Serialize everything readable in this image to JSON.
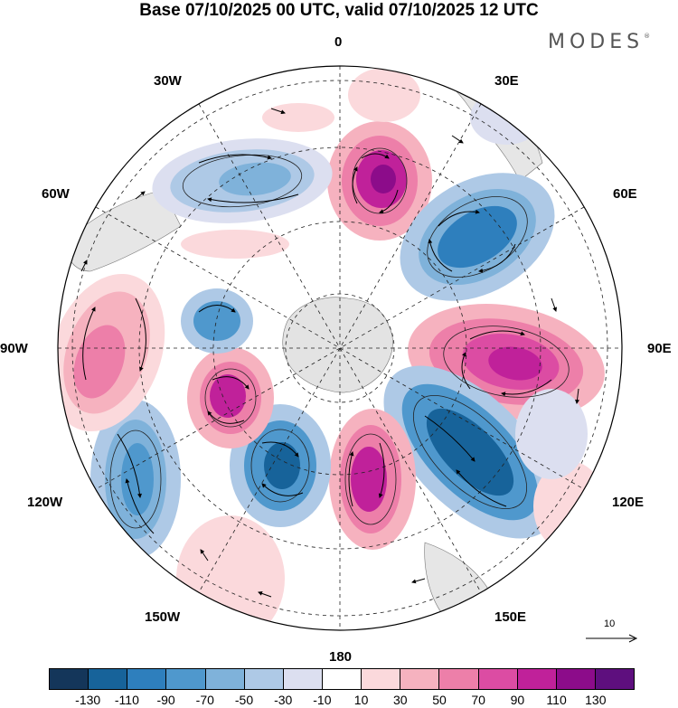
{
  "title": "Base 07/10/2025 00 UTC, valid 07/10/2025 12 UTC",
  "brand": "MODES",
  "brand_mark": "®",
  "longitude_labels": {
    "top": "0",
    "top_right": "30E",
    "right_upper": "60E",
    "right": "90E",
    "right_lower": "120E",
    "bottom_right": "150E",
    "bottom": "180",
    "bottom_left": "150W",
    "left_lower": "120W",
    "left": "90W",
    "left_upper": "60W",
    "top_left": "30W"
  },
  "reference_vector": "10",
  "colorbar": {
    "ticks": [
      "-130",
      "-110",
      "-90",
      "-70",
      "-50",
      "-30",
      "-10",
      "10",
      "30",
      "50",
      "70",
      "90",
      "110",
      "130"
    ],
    "colors": [
      "#14365a",
      "#17639a",
      "#2e7fbd",
      "#4f98cd",
      "#7fb2da",
      "#aec9e6",
      "#dcdff0",
      "#ffffff",
      "#fbd9dc",
      "#f6b2bf",
      "#ed7fa9",
      "#dc4ca3",
      "#c0219a",
      "#8c0c8a",
      "#5e0f7e"
    ]
  },
  "chart_data": {
    "type": "map",
    "title": "Base 07/10/2025 00 UTC, valid 07/10/2025 12 UTC",
    "projection": "south polar stereographic",
    "units_range": [
      -130,
      130
    ],
    "features": [
      {
        "name": "positive anomaly near 0E",
        "sign": "positive",
        "peak": 110
      },
      {
        "name": "negative anomaly near 45E",
        "sign": "negative",
        "peak": -90
      },
      {
        "name": "positive anomaly near 90E",
        "sign": "positive",
        "peak": 90
      },
      {
        "name": "negative anomaly near 135E",
        "sign": "negative",
        "peak": -110
      },
      {
        "name": "positive anomaly near 170E",
        "sign": "positive",
        "peak": 90
      },
      {
        "name": "negative anomaly near 145W",
        "sign": "negative",
        "peak": -90
      },
      {
        "name": "positive anomaly near 110W",
        "sign": "positive",
        "peak": 90
      },
      {
        "name": "negative anomaly near 80W",
        "sign": "negative",
        "peak": -70
      },
      {
        "name": "positive anomaly near 75W",
        "sign": "positive",
        "peak": 50
      },
      {
        "name": "negative anomaly near 120W",
        "sign": "negative",
        "peak": -70
      },
      {
        "name": "negative anomaly near 35W",
        "sign": "negative",
        "peak": -70
      }
    ]
  }
}
